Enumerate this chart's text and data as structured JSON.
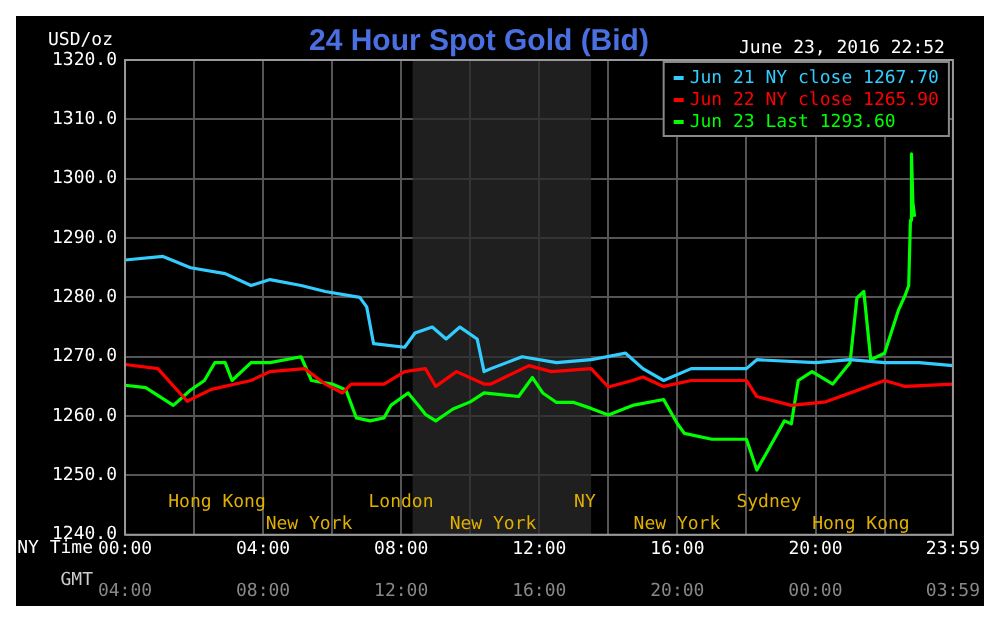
{
  "chart_data": {
    "type": "line",
    "title": "24 Hour Spot Gold (Bid)",
    "subtitle": "June 23, 2016 22:52",
    "ylabel": "USD/oz",
    "xlabel": "NY Time",
    "x2label": "GMT",
    "xlim": [
      0,
      23.98
    ],
    "xticks": [
      {
        "value": 0,
        "label": "00:00"
      },
      {
        "value": 2,
        "label": null
      },
      {
        "value": 4,
        "label": "04:00"
      },
      {
        "value": 6,
        "label": null
      },
      {
        "value": 8,
        "label": "08:00"
      },
      {
        "value": 10,
        "label": null
      },
      {
        "value": 12,
        "label": "12:00"
      },
      {
        "value": 14,
        "label": null
      },
      {
        "value": 16,
        "label": "16:00"
      },
      {
        "value": 18,
        "label": null
      },
      {
        "value": 20,
        "label": "20:00"
      },
      {
        "value": 22,
        "label": null
      },
      {
        "value": 23.98,
        "label": "23:59"
      }
    ],
    "x2lim": [
      "2016-06-23T04:00",
      "2016-06-24T03:59"
    ],
    "x2ticks": [
      {
        "value": "2016-06-23T04:00",
        "label": "04:00"
      },
      {
        "value": "2016-06-23T08:00",
        "label": "08:00"
      },
      {
        "value": "2016-06-23T12:00",
        "label": "12:00"
      },
      {
        "value": "2016-06-23T16:00",
        "label": "16:00"
      },
      {
        "value": "2016-06-23T20:00",
        "label": "20:00"
      },
      {
        "value": "2016-06-24T00:00",
        "label": "00:00"
      },
      {
        "value": "2016-06-24T03:59",
        "label": "03:59"
      }
    ],
    "ylim": [
      1240,
      1320
    ],
    "yticks": [
      {
        "value": 1240,
        "label": "1240.0"
      },
      {
        "value": 1250,
        "label": "1250.0"
      },
      {
        "value": 1260,
        "label": "1260.0"
      },
      {
        "value": 1270,
        "label": "1270.0"
      },
      {
        "value": 1280,
        "label": "1280.0"
      },
      {
        "value": 1290,
        "label": "1290.0"
      },
      {
        "value": 1300,
        "label": "1300.0"
      },
      {
        "value": 1310,
        "label": "1310.0"
      },
      {
        "value": 1320,
        "label": "1320.0"
      }
    ],
    "grid": true,
    "legend": "top right",
    "marker": "none",
    "bands": [
      {
        "axis": "x",
        "from": 8.33,
        "to": 13.5,
        "color": "#2a2a2a"
      }
    ],
    "annotations": [
      "Hong Kong",
      "New York",
      "London",
      "New York",
      "NY",
      "New York",
      "Sydney",
      "Hong Kong"
    ],
    "series": [
      {
        "name": "Jun 21 NY close 1267.70",
        "color": "#33ccff",
        "x": [
          0,
          1.1,
          1.9,
          2.9,
          3.65,
          4.2,
          5.1,
          5.8,
          6.8,
          7.0,
          7.2,
          8.1,
          8.4,
          8.9,
          9.3,
          9.7,
          10.2,
          10.4,
          10.6,
          11.5,
          12.5,
          13.5,
          14.5,
          15.0,
          15.6,
          16.4,
          18.0,
          18.3,
          20,
          21,
          22,
          23,
          23.98
        ],
        "values": [
          1286.3,
          1286.9,
          1285,
          1284,
          1282,
          1283,
          1282,
          1281,
          1280,
          1278.4,
          1272.2,
          1271.6,
          1274,
          1275,
          1273,
          1275,
          1273,
          1267.5,
          1268,
          1270,
          1269,
          1269.5,
          1270.6,
          1268,
          1266,
          1268,
          1268,
          1269.5,
          1269,
          1269.5,
          1269,
          1269,
          1268.5
        ]
      },
      {
        "name": "Jun 22 NY close 1265.90",
        "color": "#ff0000",
        "x": [
          0,
          0.95,
          1.8,
          2.5,
          3.65,
          4.2,
          5.2,
          5.8,
          6.3,
          6.55,
          7.5,
          8.1,
          8.7,
          9.0,
          9.6,
          10.4,
          10.6,
          11.7,
          12.35,
          13.5,
          14.0,
          14.7,
          15.0,
          15.6,
          16.4,
          18.0,
          18.3,
          19.3,
          20.3,
          21.0,
          22.0,
          22.6,
          23.98
        ],
        "values": [
          1268.7,
          1268,
          1262.5,
          1264.5,
          1266,
          1267.5,
          1268,
          1265.4,
          1263.9,
          1265.4,
          1265.4,
          1267.5,
          1268,
          1265,
          1267.5,
          1265.4,
          1265.4,
          1268.5,
          1267.5,
          1268,
          1264.9,
          1266,
          1266.6,
          1265,
          1266,
          1266,
          1263.3,
          1261.8,
          1262.4,
          1263.9,
          1266,
          1265,
          1265.4
        ]
      },
      {
        "name": "Jun 23 Last 1293.60",
        "color": "#00ff00",
        "x": [
          0,
          0.6,
          1.4,
          1.9,
          2.3,
          2.6,
          2.9,
          3.1,
          3.65,
          4.2,
          5.1,
          5.4,
          6.0,
          6.4,
          6.7,
          7.1,
          7.5,
          7.7,
          8.2,
          8.5,
          8.7,
          9.0,
          9.5,
          10.0,
          10.4,
          11.4,
          11.8,
          12.1,
          12.5,
          13.0,
          13.5,
          14.0,
          14.7,
          15.6,
          16.0,
          16.2,
          17.0,
          18.0,
          18.3,
          18.6,
          19.1,
          19.3,
          19.5,
          19.9,
          20.5,
          21.0,
          21.2,
          21.4,
          21.6,
          22.0,
          22.4,
          22.6,
          22.7,
          22.75,
          22.78,
          22.82,
          22.87
        ],
        "values": [
          1265.2,
          1264.8,
          1261.8,
          1264.4,
          1266,
          1269,
          1269,
          1266,
          1269,
          1269,
          1270,
          1266,
          1265.4,
          1264.4,
          1259.7,
          1259.2,
          1259.7,
          1261.8,
          1263.9,
          1261.8,
          1260.3,
          1259.2,
          1261.2,
          1262.4,
          1263.9,
          1263.3,
          1266.5,
          1263.9,
          1262.3,
          1262.3,
          1261.3,
          1260.2,
          1261.8,
          1262.8,
          1258.7,
          1257.1,
          1256.1,
          1256.1,
          1250.9,
          1254,
          1259.2,
          1258.7,
          1266,
          1267.5,
          1265.4,
          1269,
          1279.9,
          1281,
          1269.5,
          1270.6,
          1277.8,
          1280.4,
          1282,
          1293,
          1304.2,
          1296,
          1293.6
        ]
      }
    ]
  }
}
